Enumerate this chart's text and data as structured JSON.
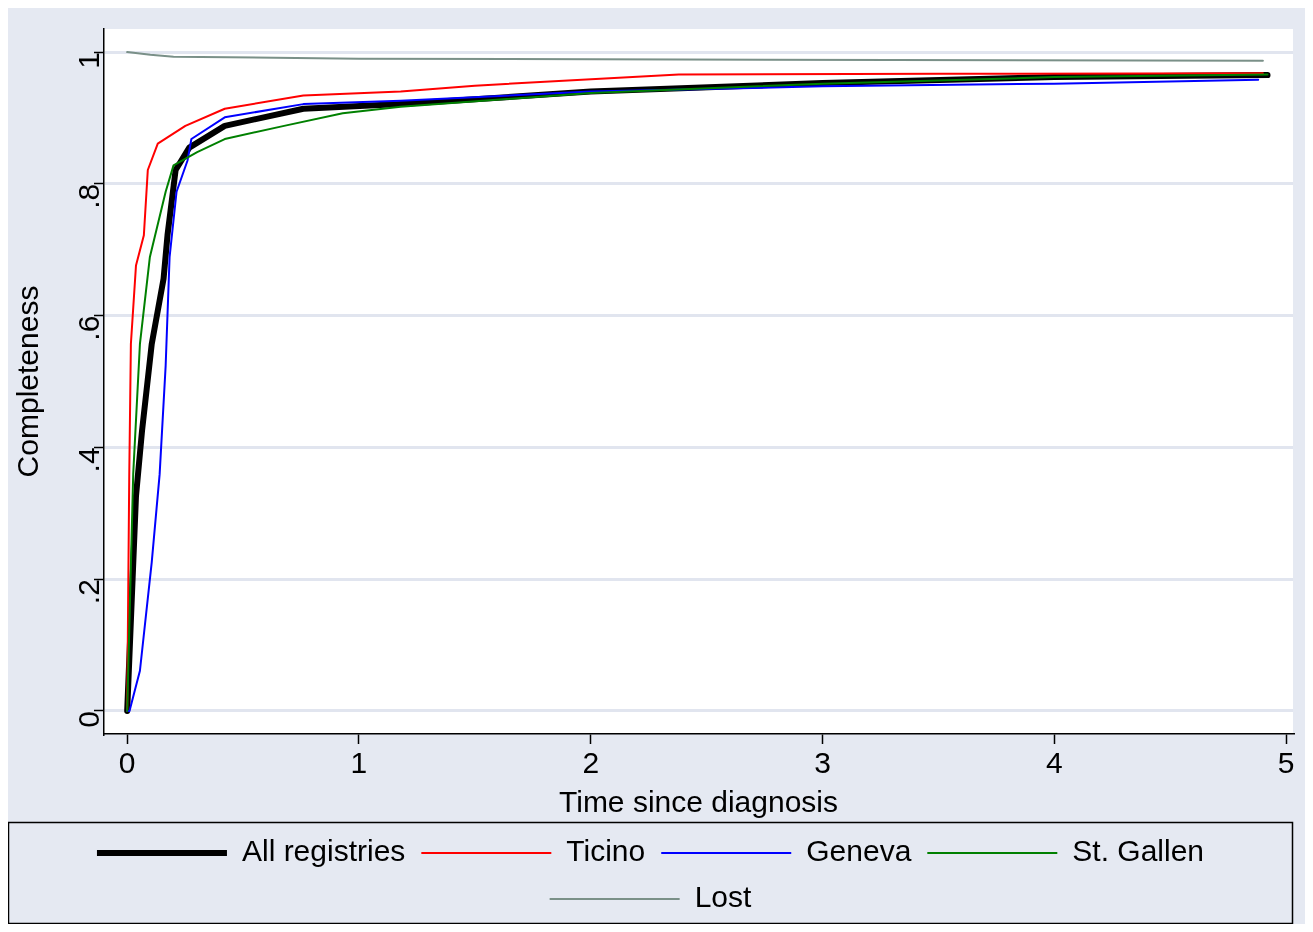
{
  "chart_data": {
    "type": "line",
    "xlabel": "Time since diagnosis",
    "ylabel": "Completeness",
    "xlim": [
      -0.1,
      5.03
    ],
    "xticks": [
      0,
      1,
      2,
      3,
      4,
      5
    ],
    "ylim": [
      -0.035,
      1.035
    ],
    "yticks": [
      {
        "value": 0,
        "label": "0"
      },
      {
        "value": 0.2,
        "label": ".2"
      },
      {
        "value": 0.4,
        "label": ".4"
      },
      {
        "value": 0.6,
        "label": ".6"
      },
      {
        "value": 0.8,
        "label": ".8"
      },
      {
        "value": 1,
        "label": "1"
      }
    ],
    "grid": "y",
    "legend": "bottom",
    "marker": "none",
    "series": [
      {
        "name": "All registries",
        "color": "#000000",
        "x": [
          0,
          0.038,
          0.064,
          0.106,
          0.157,
          0.174,
          0.209,
          0.268,
          0.421,
          0.76,
          1.18,
          2,
          3,
          4,
          4.92
        ],
        "values": [
          0,
          0.326,
          0.425,
          0.557,
          0.656,
          0.722,
          0.821,
          0.855,
          0.888,
          0.914,
          0.921,
          0.94,
          0.953,
          0.962,
          0.965
        ]
      },
      {
        "name": "Ticino",
        "color": "#ff0000",
        "x": [
          0,
          0.009,
          0.016,
          0.038,
          0.072,
          0.089,
          0.132,
          0.251,
          0.421,
          0.76,
          1.18,
          1.5,
          2.38,
          3.5,
          4.9
        ],
        "values": [
          0,
          0.359,
          0.557,
          0.676,
          0.722,
          0.821,
          0.861,
          0.888,
          0.914,
          0.934,
          0.94,
          0.949,
          0.966,
          0.967,
          0.968
        ]
      },
      {
        "name": "Geneva",
        "color": "#0000ff",
        "x": [
          0,
          0.01,
          0.055,
          0.106,
          0.14,
          0.166,
          0.183,
          0.213,
          0.26,
          0.277,
          0.421,
          0.76,
          1.18,
          2,
          3,
          4,
          4.88
        ],
        "values": [
          0,
          0,
          0.061,
          0.226,
          0.359,
          0.524,
          0.689,
          0.788,
          0.835,
          0.868,
          0.901,
          0.921,
          0.926,
          0.94,
          0.948,
          0.952,
          0.958
        ]
      },
      {
        "name": "St. Gallen",
        "color": "#008000",
        "x": [
          0,
          0.026,
          0.055,
          0.098,
          0.166,
          0.2,
          0.302,
          0.421,
          0.677,
          0.93,
          1.18,
          2,
          3,
          4,
          4.92
        ],
        "values": [
          0,
          0.359,
          0.557,
          0.689,
          0.788,
          0.828,
          0.848,
          0.868,
          0.888,
          0.907,
          0.917,
          0.938,
          0.952,
          0.962,
          0.966
        ]
      },
      {
        "name": "Lost",
        "color": "#7a9088",
        "x": [
          0,
          0.1,
          0.2,
          1,
          3.3,
          4.9
        ],
        "values": [
          1,
          0.996,
          0.993,
          0.99,
          0.988,
          0.987
        ]
      }
    ]
  }
}
